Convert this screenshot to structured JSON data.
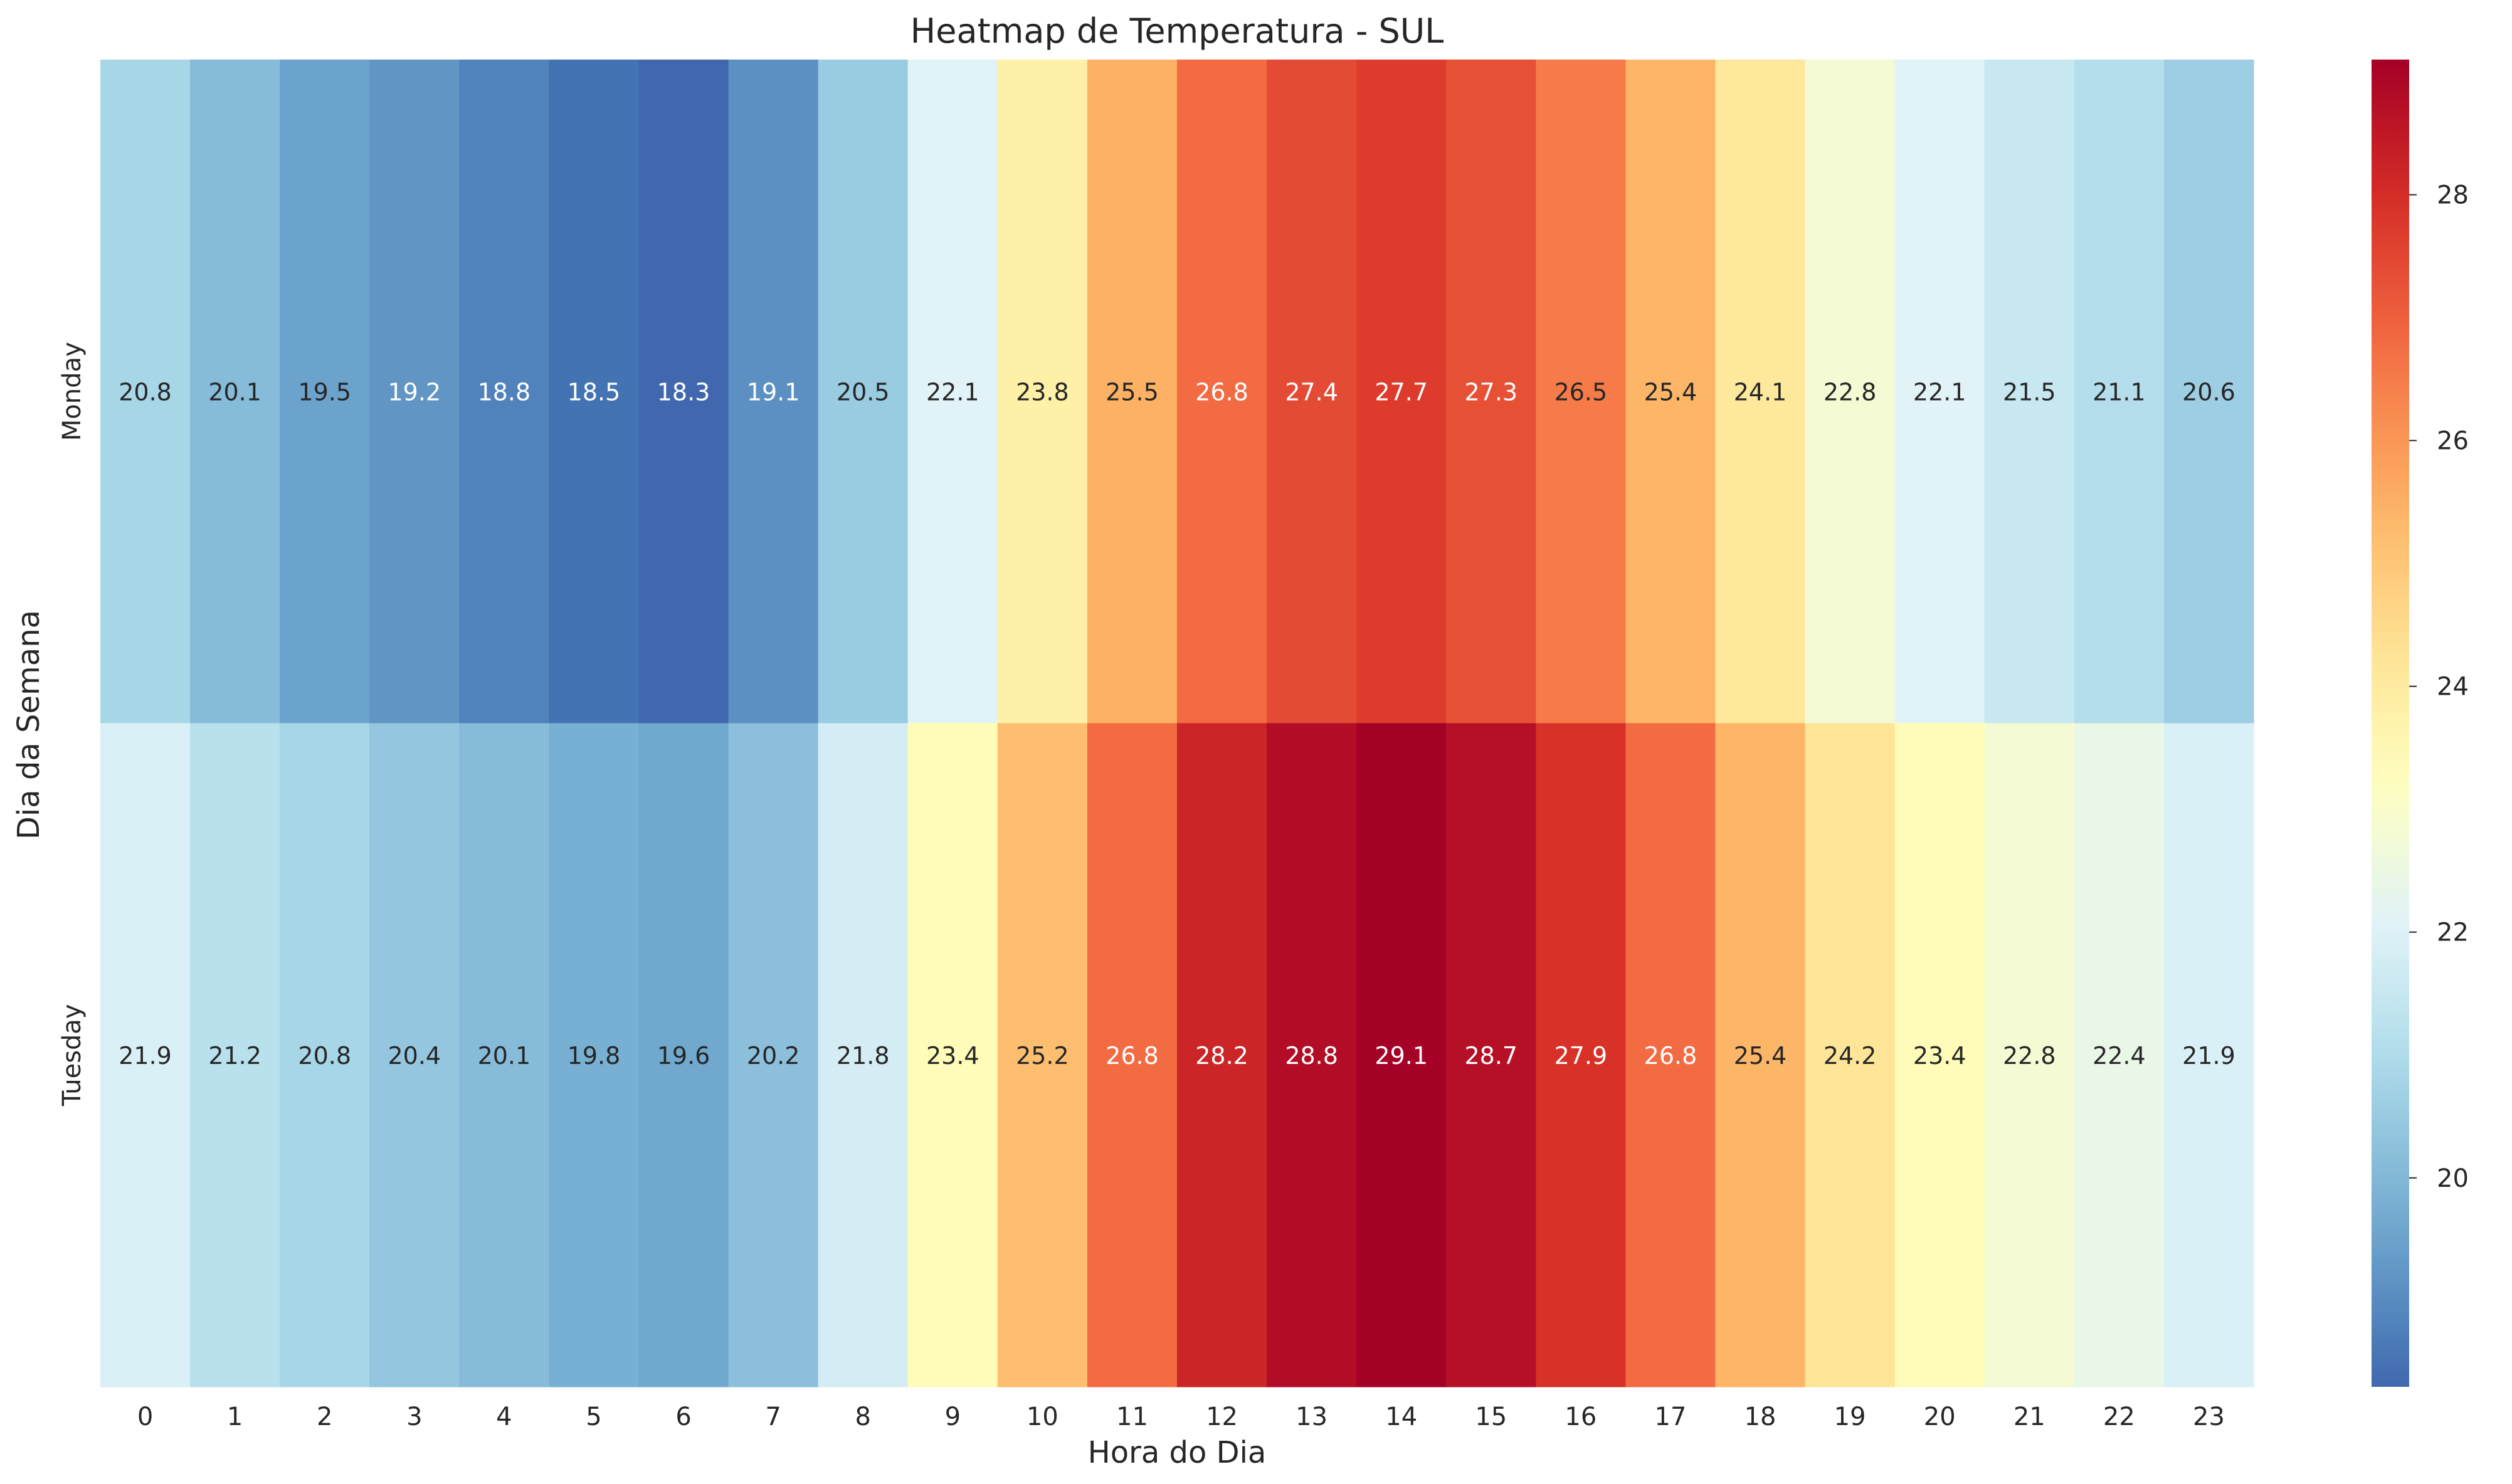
{
  "chart_data": {
    "type": "heatmap",
    "title": "Heatmap de Temperatura - SUL",
    "xlabel": "Hora do Dia",
    "ylabel": "Dia da Semana",
    "x": [
      "0",
      "1",
      "2",
      "3",
      "4",
      "5",
      "6",
      "7",
      "8",
      "9",
      "10",
      "11",
      "12",
      "13",
      "14",
      "15",
      "16",
      "17",
      "18",
      "19",
      "20",
      "21",
      "22",
      "23"
    ],
    "y": [
      "Monday",
      "Tuesday"
    ],
    "values": [
      [
        20.8,
        20.1,
        19.5,
        19.2,
        18.8,
        18.5,
        18.3,
        19.1,
        20.5,
        22.1,
        23.8,
        25.5,
        26.8,
        27.4,
        27.7,
        27.3,
        26.5,
        25.4,
        24.1,
        22.8,
        22.1,
        21.5,
        21.1,
        20.6
      ],
      [
        21.9,
        21.2,
        20.8,
        20.4,
        20.1,
        19.8,
        19.6,
        20.2,
        21.8,
        23.4,
        25.2,
        26.8,
        28.2,
        28.8,
        29.1,
        28.7,
        27.9,
        26.8,
        25.4,
        24.2,
        23.4,
        22.8,
        22.4,
        21.9
      ]
    ],
    "colorbar": {
      "colormap": "RdYlBu_r",
      "range": [
        18.3,
        29.1
      ],
      "ticks": [
        20,
        22,
        24,
        26,
        28
      ]
    },
    "annotations": "cell values shown with one decimal",
    "grid": false,
    "legend": "colorbar-right"
  }
}
